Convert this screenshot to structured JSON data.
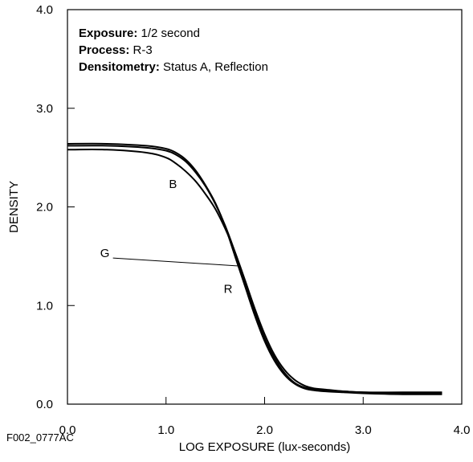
{
  "chart_data": {
    "type": "line",
    "xlabel": "LOG EXPOSURE (lux-seconds)",
    "ylabel": "DENSITY",
    "xlim": [
      0.0,
      4.0
    ],
    "ylim": [
      0.0,
      4.0
    ],
    "x_ticks": [
      "0.0",
      "1.0",
      "2.0",
      "3.0",
      "4.0"
    ],
    "y_ticks": [
      "0.0",
      "1.0",
      "2.0",
      "3.0",
      "4.0"
    ],
    "grid": false,
    "annotations": [
      {
        "key": "Exposure:",
        "text": " 1/2 second"
      },
      {
        "key": "Process:",
        "text": " R-3"
      },
      {
        "key": "Densitometry:",
        "text": " Status A, Reflection"
      }
    ],
    "series": [
      {
        "name": "R",
        "color": "#000000",
        "x": [
          0.0,
          0.4,
          0.8,
          1.0,
          1.1,
          1.2,
          1.3,
          1.4,
          1.5,
          1.6,
          1.7,
          1.8,
          1.9,
          2.0,
          2.1,
          2.2,
          2.3,
          2.4,
          2.5,
          2.6,
          2.8,
          3.0,
          3.4,
          3.8
        ],
        "y": [
          2.64,
          2.64,
          2.62,
          2.59,
          2.55,
          2.48,
          2.37,
          2.22,
          2.04,
          1.8,
          1.5,
          1.2,
          0.9,
          0.64,
          0.44,
          0.3,
          0.21,
          0.16,
          0.14,
          0.13,
          0.12,
          0.11,
          0.1,
          0.1
        ]
      },
      {
        "name": "G",
        "color": "#000000",
        "x": [
          0.0,
          0.4,
          0.8,
          1.0,
          1.1,
          1.2,
          1.3,
          1.4,
          1.5,
          1.6,
          1.7,
          1.8,
          1.9,
          2.0,
          2.1,
          2.2,
          2.3,
          2.4,
          2.5,
          2.6,
          2.8,
          3.0,
          3.4,
          3.8
        ],
        "y": [
          2.62,
          2.62,
          2.6,
          2.57,
          2.53,
          2.46,
          2.35,
          2.21,
          2.03,
          1.81,
          1.54,
          1.24,
          0.94,
          0.67,
          0.47,
          0.32,
          0.22,
          0.17,
          0.15,
          0.14,
          0.13,
          0.12,
          0.11,
          0.11
        ]
      },
      {
        "name": "B",
        "color": "#000000",
        "x": [
          0.0,
          0.4,
          0.8,
          1.0,
          1.1,
          1.2,
          1.3,
          1.4,
          1.5,
          1.6,
          1.7,
          1.8,
          1.9,
          2.0,
          2.1,
          2.2,
          2.3,
          2.4,
          2.5,
          2.6,
          2.8,
          3.0,
          3.4,
          3.8
        ],
        "y": [
          2.58,
          2.58,
          2.55,
          2.5,
          2.44,
          2.36,
          2.26,
          2.13,
          1.98,
          1.78,
          1.54,
          1.26,
          0.97,
          0.71,
          0.5,
          0.35,
          0.25,
          0.19,
          0.16,
          0.15,
          0.13,
          0.12,
          0.12,
          0.12
        ]
      }
    ],
    "curve_labels": [
      {
        "series": "B",
        "text": "B",
        "at": [
          1.07,
          2.19
        ]
      },
      {
        "series": "G",
        "text": "G",
        "at": [
          0.38,
          1.49
        ],
        "leader_to": [
          1.75,
          1.4
        ]
      },
      {
        "series": "R",
        "text": "R",
        "at": [
          1.63,
          1.13
        ]
      }
    ]
  },
  "figure_id": "F002_0777AC"
}
